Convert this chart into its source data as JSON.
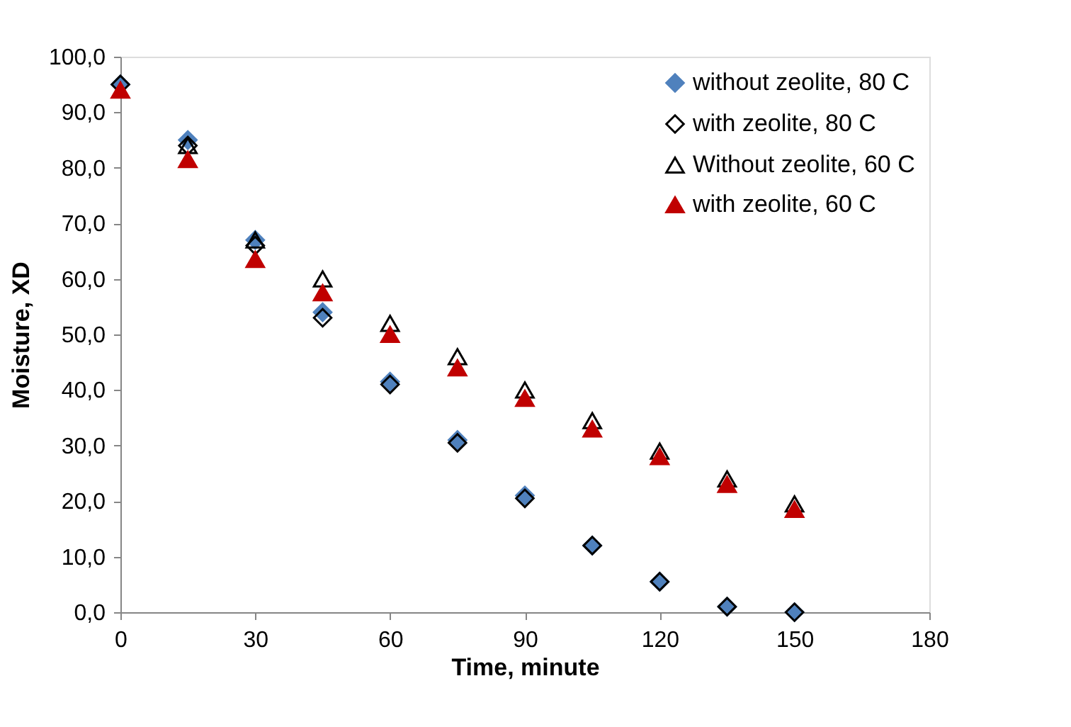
{
  "chart_data": {
    "type": "scatter",
    "xlabel": "Time, minute",
    "ylabel": "Moisture, XD",
    "x": [
      0,
      15,
      30,
      45,
      60,
      75,
      90,
      105,
      120,
      135,
      150
    ],
    "series": [
      {
        "name": "without zeolite, 80 C",
        "color": "#4f81bd",
        "marker": "diamond",
        "values": [
          95,
          85,
          67,
          54,
          41.5,
          31,
          21,
          12,
          5.5,
          1,
          0
        ]
      },
      {
        "name": "with zeolite, 80 C",
        "color": "#000000",
        "marker": "diamond",
        "values": [
          95,
          84,
          66,
          53,
          41,
          30.5,
          20.5,
          12,
          5.5,
          1,
          0
        ]
      },
      {
        "name": "Without zeolite, 60 C",
        "color": "#000000",
        "marker": "triangle",
        "values": [
          null,
          84,
          67,
          60,
          52,
          46,
          40,
          34.5,
          29,
          24,
          19.5
        ]
      },
      {
        "name": "with zeolite, 60 C",
        "color": "#c00000",
        "marker": "triangle",
        "values": [
          94,
          81.5,
          63.5,
          57.5,
          50,
          44,
          38.5,
          33,
          28,
          23,
          18.5
        ]
      }
    ],
    "xlim": [
      0,
      180
    ],
    "xticks": [
      0,
      30,
      60,
      90,
      120,
      150,
      180
    ],
    "ylim": [
      0,
      100
    ],
    "yticks": [
      {
        "value": 0,
        "label": "0,0"
      },
      {
        "value": 10,
        "label": "10,0"
      },
      {
        "value": 20,
        "label": "20,0"
      },
      {
        "value": 30,
        "label": "30,0"
      },
      {
        "value": 40,
        "label": "40,0"
      },
      {
        "value": 50,
        "label": "50,0"
      },
      {
        "value": 60,
        "label": "60,0"
      },
      {
        "value": 70,
        "label": "70,0"
      },
      {
        "value": 80,
        "label": "80,0"
      },
      {
        "value": 90,
        "label": "90,0"
      },
      {
        "value": 100,
        "label": "100,0"
      }
    ],
    "grid": false,
    "legend": "top right"
  }
}
